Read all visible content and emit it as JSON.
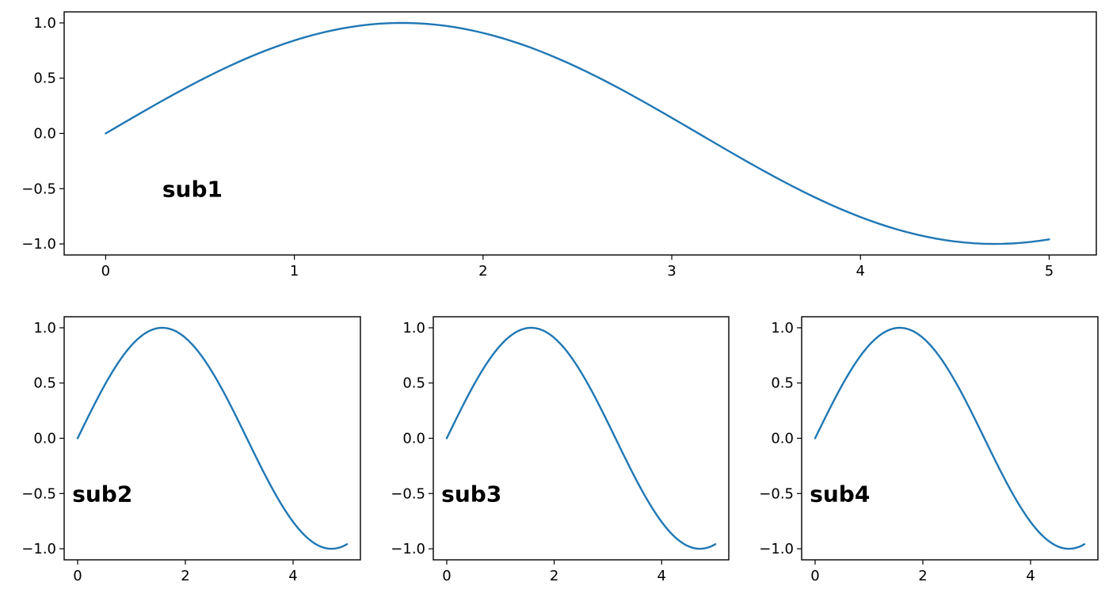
{
  "colors": {
    "line": "#1f77b4",
    "frame": "#000000",
    "background": "#ffffff"
  },
  "chart_data": [
    {
      "type": "line",
      "function": "sin(x)",
      "x_range": [
        0,
        5
      ],
      "samples": 101,
      "xlim": [
        -0.22,
        5.25
      ],
      "ylim": [
        -1.1,
        1.1
      ],
      "xticks": [
        0,
        1,
        2,
        3,
        4,
        5
      ],
      "yticks": [
        1.0,
        0.5,
        0.0,
        -0.5,
        -1.0
      ],
      "ytick_labels": [
        "1.0",
        "0.5",
        "0.0",
        "−0.5",
        "−1.0"
      ],
      "annotation": {
        "text": "sub1",
        "x": 0.3,
        "y": -0.5
      },
      "grid": false
    },
    {
      "type": "line",
      "function": "sin(x)",
      "x_range": [
        0,
        5
      ],
      "samples": 101,
      "xlim": [
        -0.25,
        5.25
      ],
      "ylim": [
        -1.1,
        1.1
      ],
      "xticks": [
        0,
        2,
        4
      ],
      "yticks": [
        1.0,
        0.5,
        0.0,
        -0.5,
        -1.0
      ],
      "ytick_labels": [
        "1.0",
        "0.5",
        "0.0",
        "−0.5",
        "−1.0"
      ],
      "annotation": {
        "text": "sub2",
        "x": -0.1,
        "y": -0.5
      },
      "grid": false
    },
    {
      "type": "line",
      "function": "sin(x)",
      "x_range": [
        0,
        5
      ],
      "samples": 101,
      "xlim": [
        -0.25,
        5.25
      ],
      "ylim": [
        -1.1,
        1.1
      ],
      "xticks": [
        0,
        2,
        4
      ],
      "yticks": [
        1.0,
        0.5,
        0.0,
        -0.5,
        -1.0
      ],
      "ytick_labels": [
        "1.0",
        "0.5",
        "0.0",
        "−0.5",
        "−1.0"
      ],
      "annotation": {
        "text": "sub3",
        "x": -0.1,
        "y": -0.5
      },
      "grid": false
    },
    {
      "type": "line",
      "function": "sin(x)",
      "x_range": [
        0,
        5
      ],
      "samples": 101,
      "xlim": [
        -0.25,
        5.25
      ],
      "ylim": [
        -1.1,
        1.1
      ],
      "xticks": [
        0,
        2,
        4
      ],
      "yticks": [
        1.0,
        0.5,
        0.0,
        -0.5,
        -1.0
      ],
      "ytick_labels": [
        "1.0",
        "0.5",
        "0.0",
        "−0.5",
        "−1.0"
      ],
      "annotation": {
        "text": "sub4",
        "x": -0.1,
        "y": -0.5
      },
      "grid": false
    }
  ]
}
